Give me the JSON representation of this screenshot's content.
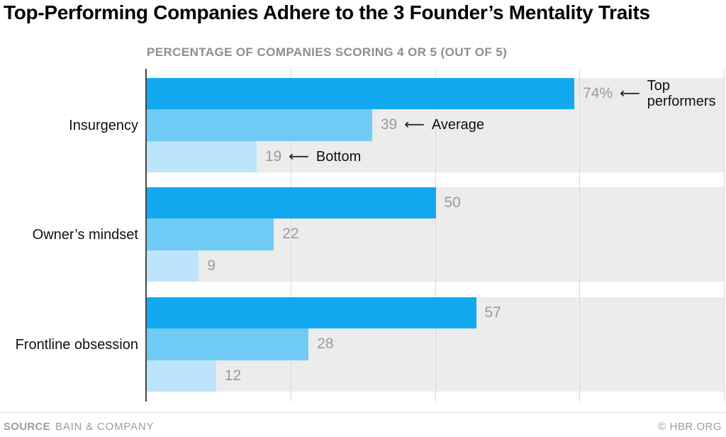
{
  "title": "Top-Performing Companies Adhere to the 3 Founder’s Mentality Traits",
  "subtitle": "PERCENTAGE OF COMPANIES SCORING 4 OR 5 (OUT OF 5)",
  "footer": {
    "source_label": "SOURCE",
    "source_name": "BAIN & COMPANY",
    "credit": "© HBR.ORG"
  },
  "colors": {
    "series": [
      "#12a8f0",
      "#6fcbf3",
      "#bce4fb"
    ],
    "track": "#ececec",
    "gridline": "#d8d8d8",
    "axis": "#454545",
    "value_label": "#9b9b9b",
    "subtitle_text": "#8e8e8e",
    "footer_text": "#9c9c9c",
    "title_text": "#000000",
    "annotation_text": "#111111"
  },
  "chart_data": {
    "type": "bar",
    "orientation": "horizontal",
    "title": "Top-Performing Companies Adhere to the 3 Founder’s Mentality Traits",
    "subtitle": "PERCENTAGE OF COMPANIES SCORING 4 OR 5 (OUT OF 5)",
    "xlim": [
      0,
      100
    ],
    "gridline_values": [
      25,
      50,
      75,
      100
    ],
    "grid": true,
    "categories": [
      "Insurgency",
      "Owner’s mindset",
      "Frontline obsession"
    ],
    "series": [
      {
        "name": "Top performers",
        "values": [
          74,
          50,
          57
        ]
      },
      {
        "name": "Average",
        "values": [
          39,
          22,
          28
        ]
      },
      {
        "name": "Bottom",
        "values": [
          19,
          9,
          12
        ]
      }
    ],
    "value_display_labels": [
      [
        "74%",
        "39",
        "19"
      ],
      [
        "50",
        "22",
        "9"
      ],
      [
        "57",
        "28",
        "12"
      ]
    ],
    "annotation_arrow": "⟵",
    "annotated_category_index": 0,
    "legend": "inline arrow annotations on first category"
  }
}
